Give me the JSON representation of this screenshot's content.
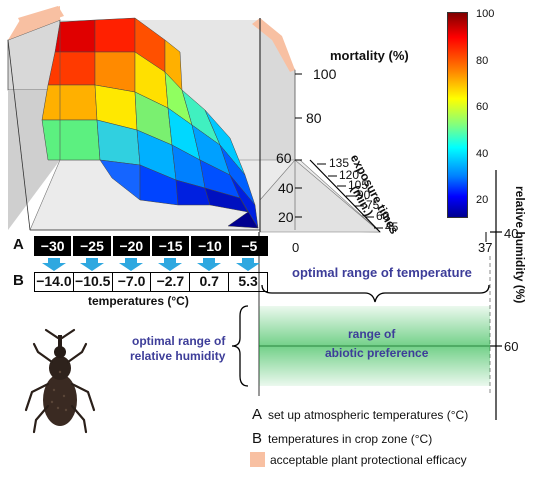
{
  "plot3d": {
    "z_axis_label": "mortality (%)",
    "z_ticks": [
      "100",
      "80",
      "60",
      "40",
      "20"
    ],
    "exposure_label": "exposure times (min.)",
    "exposure_label_line1": "exposure times",
    "exposure_label_line2": "(min.)",
    "exposure_ticks": [
      "135",
      "120",
      "105",
      "90",
      "75",
      "60",
      "45"
    ],
    "colorbar": {
      "ticks": [
        "100",
        "80",
        "60",
        "40",
        "20"
      ],
      "colors": [
        "#7f0000",
        "#ff0000",
        "#ff8000",
        "#ffff00",
        "#00ffff",
        "#0000ff",
        "#00008f"
      ]
    }
  },
  "rows": {
    "a_letter": "A",
    "b_letter": "B",
    "a_values": [
      "−30",
      "−25",
      "−20",
      "−15",
      "−10",
      "−5"
    ],
    "b_values": [
      "−14.0",
      "−10.5",
      "−7.0",
      "−2.7",
      "0.7",
      "5.3"
    ],
    "temperatures_label": "temperatures (°C)"
  },
  "preference": {
    "temp_axis_min": "0",
    "temp_axis_max": "37",
    "optimal_temperature": "optimal range of temperature",
    "optimal_humidity_line1": "optimal range of",
    "optimal_humidity_line2": "relative humidity",
    "range_line1": "range of",
    "range_line2": "abiotic preference",
    "humidity_label": "relative humidity (%)",
    "humidity_ticks": [
      "40",
      "60"
    ]
  },
  "legend": {
    "a_letter": "A",
    "a_text": "set up atmospheric temperatures (°C)",
    "b_letter": "B",
    "b_text": "temperatures in crop zone (°C)",
    "swatch_text": "acceptable plant protectional efficacy",
    "swatch_color": "#f8c0a2"
  }
}
